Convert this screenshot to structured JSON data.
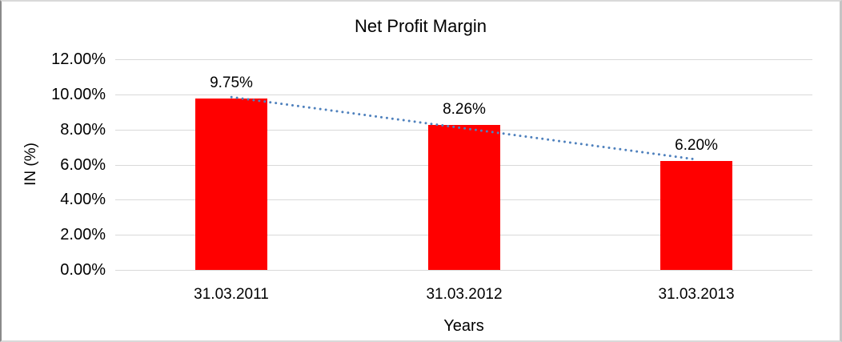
{
  "chart_data": {
    "type": "bar",
    "title": "Net Profit Margin",
    "xlabel": "Years",
    "ylabel": "IN (%)",
    "categories": [
      "31.03.2011",
      "31.03.2012",
      "31.03.2013"
    ],
    "series": [
      {
        "name": "Net Profit Margin",
        "values": [
          9.75,
          8.26,
          6.2
        ]
      }
    ],
    "data_labels": [
      "9.75%",
      "8.26%",
      "6.20%"
    ],
    "ylim": [
      0,
      12
    ],
    "ytick_step": 2,
    "ytick_labels": [
      "0.00%",
      "2.00%",
      "4.00%",
      "6.00%",
      "8.00%",
      "10.00%",
      "12.00%"
    ],
    "grid": true,
    "legend": "none",
    "trendline": {
      "type": "linear",
      "style": "dotted"
    },
    "colors": {
      "bar": "#ff0000",
      "trendline": "#4f81bd",
      "gridline": "#d9d9d9",
      "text": "#000000",
      "background": "#ffffff"
    }
  }
}
